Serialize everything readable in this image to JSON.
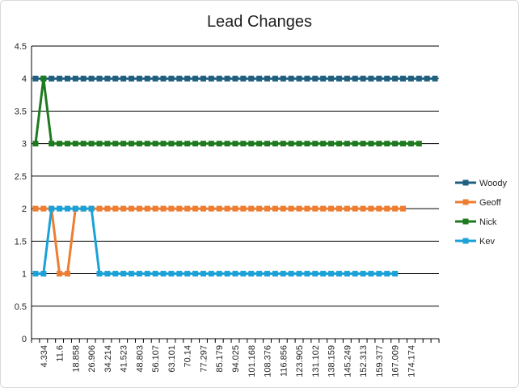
{
  "chart_data": {
    "type": "line",
    "title": "Lead Changes",
    "xlabel": "",
    "ylabel": "",
    "ylim": [
      0,
      4.5
    ],
    "y_ticks": [
      "0",
      "0.5",
      "1",
      "1.5",
      "2",
      "2.5",
      "3",
      "3.5",
      "4",
      "4.5"
    ],
    "grid": "horizontal",
    "legend_position": "right",
    "x_tick_labels": [
      "4.334",
      "11.6",
      "18.858",
      "26.906",
      "34.214",
      "41.523",
      "48.803",
      "56.107",
      "63.101",
      "70.14",
      "77.297",
      "85.179",
      "94.025",
      "101.168",
      "108.376",
      "116.856",
      "123.905",
      "131.102",
      "138.159",
      "145.249",
      "152.313",
      "159.377",
      "167.009",
      "174.174"
    ],
    "series": [
      {
        "name": "Woody",
        "color": "#1f5f7f",
        "values": [
          4,
          4,
          4,
          4,
          4,
          4,
          4,
          4,
          4,
          4,
          4,
          4,
          4,
          4,
          4,
          4,
          4,
          4,
          4,
          4,
          4,
          4,
          4,
          4,
          4,
          4,
          4,
          4,
          4,
          4,
          4,
          4,
          4,
          4,
          4,
          4,
          4,
          4,
          4,
          4,
          4,
          4,
          4,
          4,
          4,
          4,
          4,
          4,
          4,
          4,
          4
        ]
      },
      {
        "name": "Geoff",
        "color": "#ed7d31",
        "values": [
          2,
          2,
          2,
          1,
          1,
          2,
          2,
          2,
          2,
          2,
          2,
          2,
          2,
          2,
          2,
          2,
          2,
          2,
          2,
          2,
          2,
          2,
          2,
          2,
          2,
          2,
          2,
          2,
          2,
          2,
          2,
          2,
          2,
          2,
          2,
          2,
          2,
          2,
          2,
          2,
          2,
          2,
          2,
          2,
          2,
          2,
          2
        ]
      },
      {
        "name": "Nick",
        "color": "#1e7a1e",
        "values": [
          3,
          4,
          3,
          3,
          3,
          3,
          3,
          3,
          3,
          3,
          3,
          3,
          3,
          3,
          3,
          3,
          3,
          3,
          3,
          3,
          3,
          3,
          3,
          3,
          3,
          3,
          3,
          3,
          3,
          3,
          3,
          3,
          3,
          3,
          3,
          3,
          3,
          3,
          3,
          3,
          3,
          3,
          3,
          3,
          3,
          3,
          3,
          3,
          3
        ]
      },
      {
        "name": "Kev",
        "color": "#1aa2d8",
        "values": [
          1,
          1,
          2,
          2,
          2,
          2,
          2,
          2,
          1,
          1,
          1,
          1,
          1,
          1,
          1,
          1,
          1,
          1,
          1,
          1,
          1,
          1,
          1,
          1,
          1,
          1,
          1,
          1,
          1,
          1,
          1,
          1,
          1,
          1,
          1,
          1,
          1,
          1,
          1,
          1,
          1,
          1,
          1,
          1,
          1,
          1
        ]
      }
    ]
  }
}
